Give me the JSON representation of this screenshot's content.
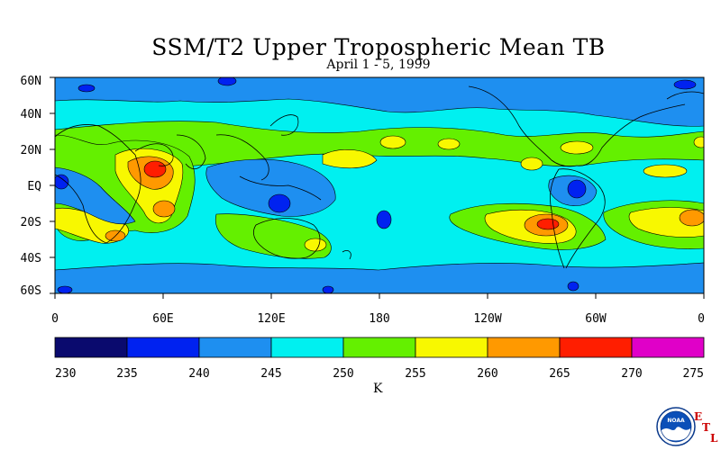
{
  "title": "SSM/T2 Upper Tropospheric Mean TB",
  "subtitle": "April 1 - 5, 1999",
  "map": {
    "lat_labels": [
      "60N",
      "40N",
      "20N",
      "EQ",
      "20S",
      "40S",
      "60S"
    ],
    "lon_labels": [
      "0",
      "60E",
      "120E",
      "180",
      "120W",
      "60W",
      "0"
    ]
  },
  "colorbar": {
    "ticks": [
      "230",
      "235",
      "240",
      "245",
      "250",
      "255",
      "260",
      "265",
      "270",
      "275"
    ],
    "colors": [
      "#0a0a6e",
      "#0022f0",
      "#1e8ff0",
      "#00f0f0",
      "#64f000",
      "#f8f800",
      "#ff9900",
      "#ff1e00",
      "#e000c8"
    ],
    "units": "K"
  },
  "logo": {
    "text": "NOAA",
    "lab_letters": [
      "E",
      "T",
      "L"
    ]
  },
  "colors": {
    "deep_blue": "#0a0a6e",
    "blue": "#0022f0",
    "mid_blue": "#1e8ff0",
    "cyan": "#00f0f0",
    "green": "#64f000",
    "yellow": "#f8f800",
    "orange": "#ff9900",
    "red": "#ff1e00",
    "magenta": "#e000c8"
  }
}
